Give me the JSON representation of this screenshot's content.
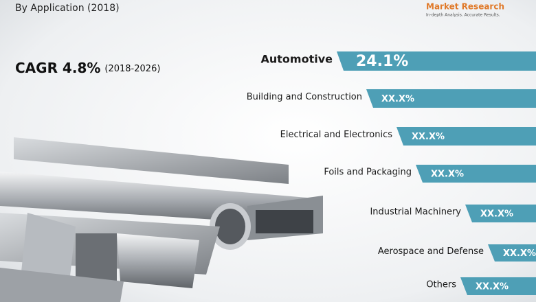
{
  "header": {
    "title": "By Application (2018)"
  },
  "logo": {
    "name": "Market Research",
    "tagline": "In-depth Analysis. Accurate Results."
  },
  "cagr": {
    "label": "CAGR 4.8%",
    "period": "(2018-2026)"
  },
  "items": [
    {
      "label": "Automotive",
      "value": "24.1%"
    },
    {
      "label": "Building and Construction",
      "value": "XX.X%"
    },
    {
      "label": "Electrical and Electronics",
      "value": "XX.X%"
    },
    {
      "label": "Foils and Packaging",
      "value": "XX.X%"
    },
    {
      "label": "Industrial Machinery",
      "value": "XX.X%"
    },
    {
      "label": "Aerospace and Defense",
      "value": "XX.X%"
    },
    {
      "label": "Others",
      "value": "XX.X%"
    }
  ]
}
